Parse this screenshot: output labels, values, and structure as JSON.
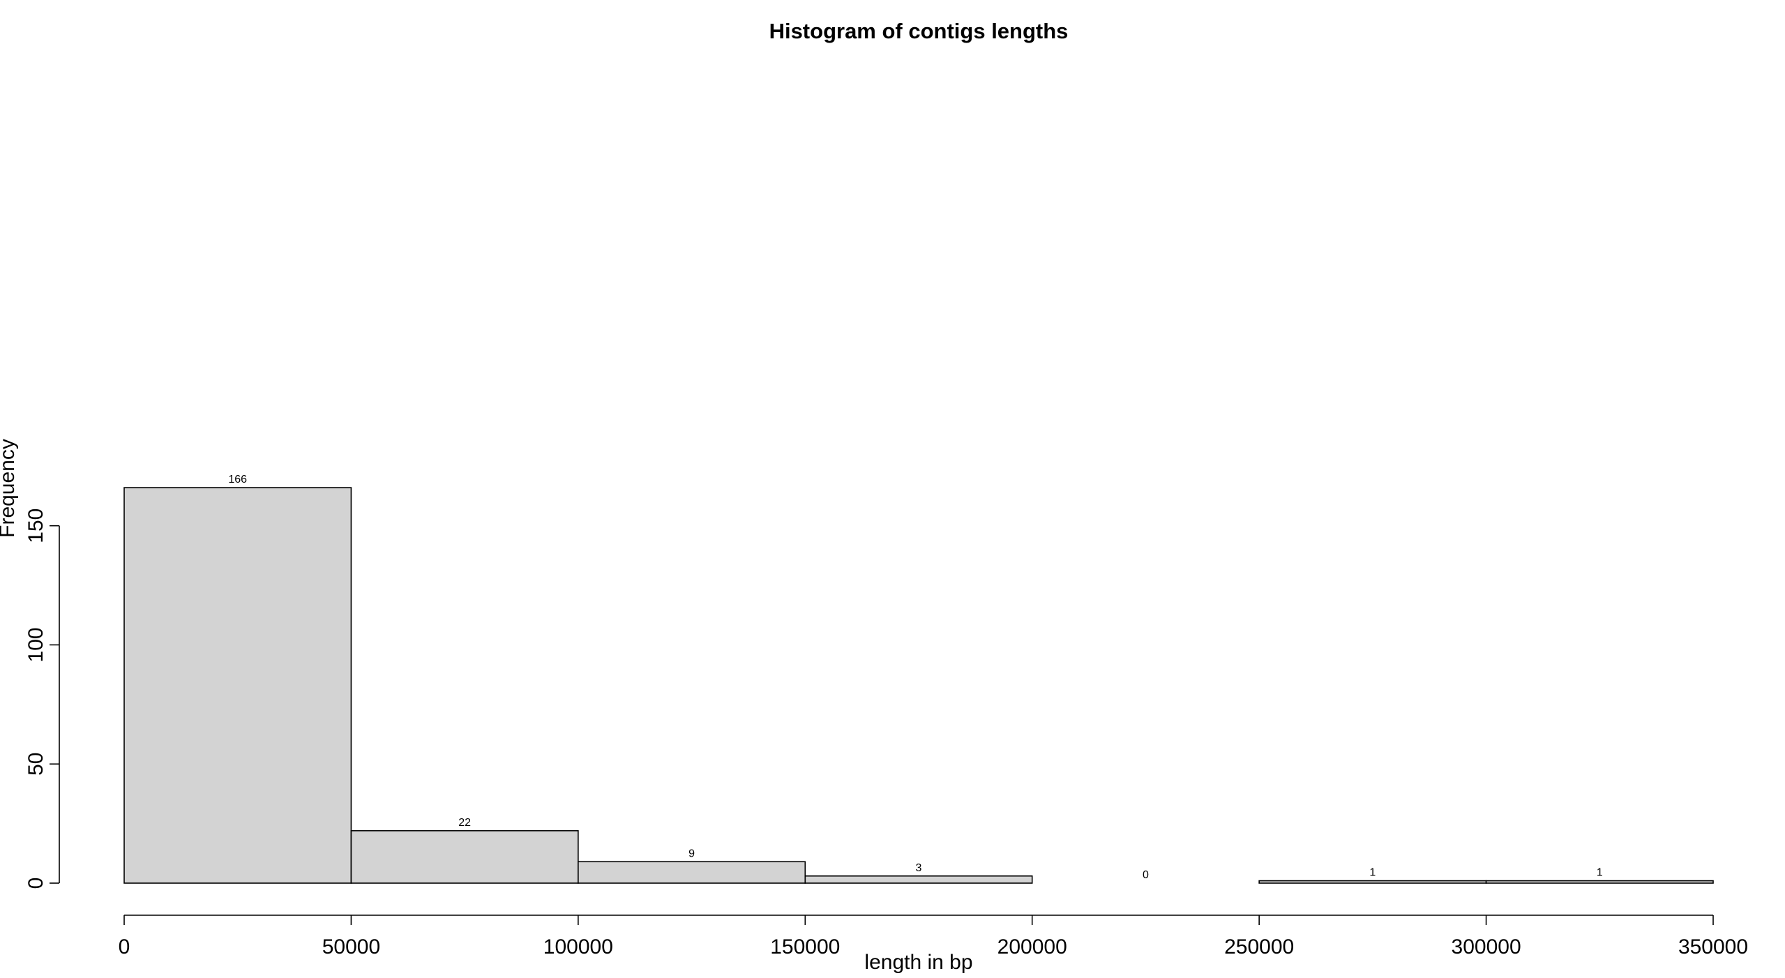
{
  "chart_data": {
    "type": "bar",
    "title": "Histogram of contigs lengths",
    "xlabel": "length in bp",
    "ylabel": "Frequency",
    "bins": [
      {
        "from": 0,
        "to": 50000,
        "count": 166,
        "label": "166"
      },
      {
        "from": 50000,
        "to": 100000,
        "count": 22,
        "label": "22"
      },
      {
        "from": 100000,
        "to": 150000,
        "count": 9,
        "label": "9"
      },
      {
        "from": 150000,
        "to": 200000,
        "count": 3,
        "label": "3"
      },
      {
        "from": 200000,
        "to": 250000,
        "count": 0,
        "label": "0"
      },
      {
        "from": 250000,
        "to": 300000,
        "count": 1,
        "label": "1"
      },
      {
        "from": 300000,
        "to": 350000,
        "count": 1,
        "label": "1"
      }
    ],
    "x_ticks": [
      {
        "value": 0,
        "label": "0"
      },
      {
        "value": 50000,
        "label": "50000"
      },
      {
        "value": 100000,
        "label": "100000"
      },
      {
        "value": 150000,
        "label": "150000"
      },
      {
        "value": 200000,
        "label": "200000"
      },
      {
        "value": 250000,
        "label": "250000"
      },
      {
        "value": 300000,
        "label": "300000"
      },
      {
        "value": 350000,
        "label": "350000"
      }
    ],
    "y_ticks": [
      {
        "value": 0,
        "label": "0"
      },
      {
        "value": 50,
        "label": "50"
      },
      {
        "value": 100,
        "label": "100"
      },
      {
        "value": 150,
        "label": "150"
      }
    ],
    "xlim": [
      0,
      350000
    ],
    "ylim": [
      0,
      166
    ],
    "bar_fill": "#d3d3d3",
    "grid": false,
    "legend": "none"
  }
}
